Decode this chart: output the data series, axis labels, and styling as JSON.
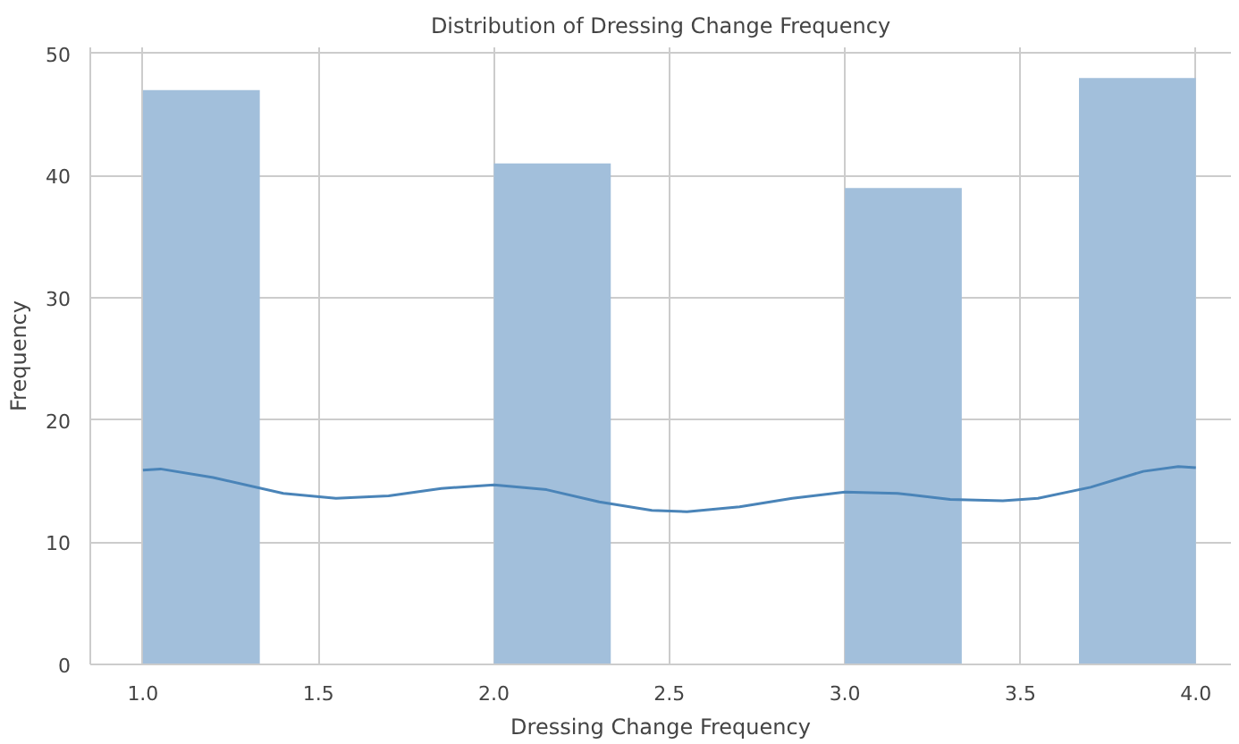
{
  "chart_data": {
    "type": "histogram",
    "title": "Distribution of Dressing Change Frequency",
    "xlabel": "Dressing Change Frequency",
    "ylabel": "Frequency",
    "bins": [
      1.0,
      1.333,
      1.667,
      2.0,
      2.333,
      2.667,
      3.0,
      3.333,
      3.667,
      4.0
    ],
    "series": [
      {
        "color": "#a2bfdb",
        "values": [
          47,
          0,
          0,
          41,
          0,
          0,
          39,
          0,
          48
        ]
      },
      {
        "type": "line",
        "color": "#4a84b8",
        "x": [
          1.0,
          1.05,
          1.2,
          1.4,
          1.55,
          1.7,
          1.85,
          2.0,
          2.15,
          2.3,
          2.45,
          2.55,
          2.7,
          2.85,
          3.0,
          3.15,
          3.3,
          3.45,
          3.55,
          3.7,
          3.85,
          3.95,
          4.0
        ],
        "values": [
          15.9,
          16.0,
          15.3,
          14.0,
          13.6,
          13.8,
          14.4,
          14.7,
          14.3,
          13.3,
          12.6,
          12.5,
          12.9,
          13.6,
          14.1,
          14.0,
          13.5,
          13.4,
          13.6,
          14.5,
          15.8,
          16.2,
          16.1
        ]
      }
    ],
    "xlim": [
      0.85,
      4.1
    ],
    "ylim": [
      0,
      50.5
    ],
    "xticks": [
      {
        "value": 1.0,
        "label": "1.0"
      },
      1.5,
      {
        "value": 2.0,
        "label": "2.0"
      },
      2.5,
      {
        "value": 3.0,
        "label": "3.0"
      },
      3.5,
      {
        "value": 4.0,
        "label": "4.0"
      }
    ],
    "yticks": [
      0,
      10,
      20,
      30,
      40,
      50
    ],
    "grid": true
  }
}
